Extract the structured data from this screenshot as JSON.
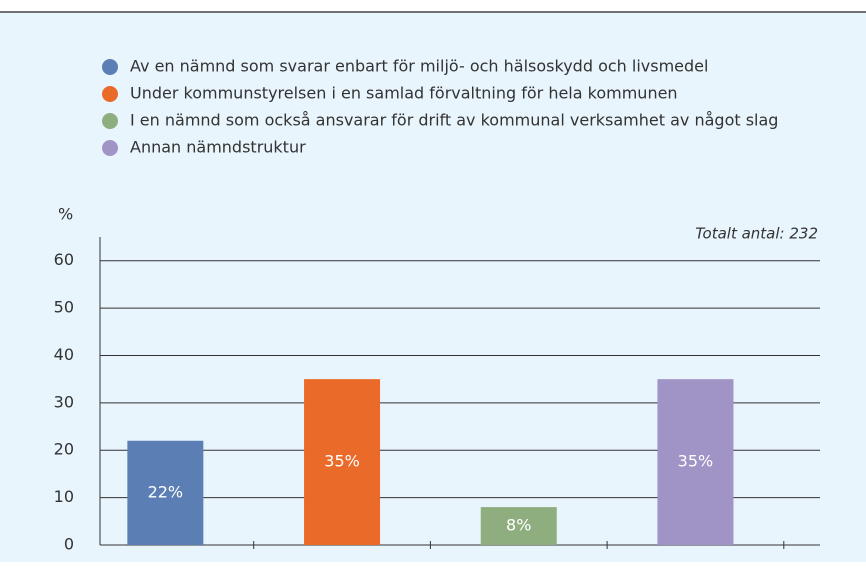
{
  "chart_data": {
    "type": "bar",
    "y_label": "%",
    "annotation": "Totalt antal: 232",
    "categories": [
      "Av en nämnd som svarar enbart för miljö- och hälsoskydd och livsmedel",
      "Under kommunstyrelsen i en samlad förvaltning för hela kommunen",
      "I en nämnd som också ansvarar för drift av kommunal verksamhet av något slag",
      "Annan nämndstruktur"
    ],
    "values": [
      22,
      35,
      8,
      35
    ],
    "value_labels": [
      "22%",
      "35%",
      "8%",
      "35%"
    ],
    "colors": [
      "#5b7fb5",
      "#ea6a2a",
      "#8fae80",
      "#a093c6"
    ],
    "ylim": [
      0,
      65
    ],
    "yticks": [
      0,
      10,
      20,
      30,
      40,
      50,
      60
    ],
    "grid": true
  }
}
